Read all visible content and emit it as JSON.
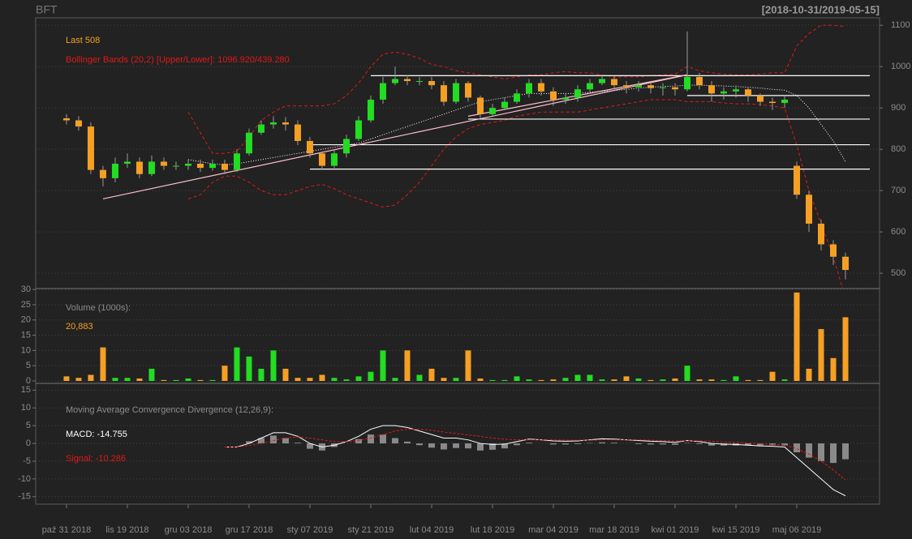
{
  "chart_data": [
    {
      "type": "candlestick",
      "title": "BFT",
      "date_range": "[2018-10-31/2019-05-15]",
      "last_label": "Last 508",
      "bands_label": "Bollinger Bands (20,2) [Upper/Lower]: 1096.920/439.280",
      "xlim": [
        -2.53,
        66.8
      ],
      "ylim": [
        463,
        1118
      ],
      "yticks": [
        500,
        600,
        700,
        800,
        900,
        1000,
        1100
      ],
      "grid": true,
      "up_color": "#22dd22",
      "down_color": "#f5a024",
      "band_color": "#e01818",
      "middle_color": "#ffffff",
      "open": [
        875,
        870,
        855,
        750,
        730,
        765,
        770,
        740,
        770,
        760,
        760,
        765,
        755,
        765,
        750,
        790,
        840,
        860,
        865,
        860,
        820,
        790,
        760,
        790,
        825,
        870,
        920,
        960,
        970,
        965,
        965,
        955,
        915,
        960,
        925,
        885,
        900,
        915,
        935,
        960,
        940,
        920,
        925,
        945,
        960,
        970,
        955,
        950,
        955,
        948,
        950,
        945,
        975,
        955,
        935,
        940,
        945,
        930,
        915,
        912,
        760,
        690,
        620,
        570,
        540
      ],
      "high": [
        885,
        880,
        865,
        760,
        780,
        790,
        780,
        785,
        780,
        770,
        775,
        775,
        775,
        775,
        800,
        850,
        870,
        880,
        878,
        870,
        830,
        795,
        800,
        835,
        880,
        930,
        975,
        1000,
        980,
        975,
        975,
        965,
        970,
        965,
        930,
        910,
        925,
        945,
        970,
        970,
        950,
        935,
        955,
        970,
        980,
        975,
        965,
        965,
        962,
        960,
        960,
        1085,
        985,
        965,
        950,
        955,
        950,
        935,
        925,
        930,
        770,
        700,
        630,
        580,
        550
      ],
      "low": [
        860,
        845,
        740,
        710,
        720,
        755,
        730,
        735,
        750,
        750,
        750,
        745,
        748,
        740,
        745,
        785,
        835,
        850,
        845,
        810,
        780,
        750,
        755,
        780,
        820,
        865,
        910,
        955,
        955,
        955,
        945,
        905,
        910,
        915,
        875,
        880,
        895,
        910,
        925,
        930,
        905,
        910,
        915,
        940,
        955,
        945,
        935,
        940,
        935,
        930,
        930,
        940,
        945,
        915,
        920,
        925,
        915,
        905,
        895,
        900,
        680,
        600,
        555,
        520,
        485
      ],
      "close": [
        870,
        855,
        750,
        730,
        765,
        770,
        740,
        770,
        760,
        760,
        765,
        755,
        765,
        750,
        790,
        840,
        860,
        865,
        860,
        820,
        790,
        760,
        790,
        825,
        870,
        920,
        960,
        970,
        965,
        965,
        955,
        915,
        960,
        925,
        885,
        900,
        915,
        935,
        960,
        940,
        920,
        925,
        945,
        960,
        970,
        955,
        950,
        955,
        948,
        950,
        945,
        975,
        955,
        935,
        940,
        945,
        930,
        915,
        912,
        920,
        690,
        620,
        570,
        540,
        508
      ],
      "upper": [
        null,
        null,
        null,
        null,
        null,
        null,
        null,
        null,
        null,
        null,
        890,
        840,
        790,
        790,
        795,
        830,
        870,
        890,
        905,
        905,
        905,
        905,
        910,
        930,
        960,
        1000,
        1030,
        1035,
        1030,
        1020,
        1005,
        1000,
        990,
        985,
        980,
        975,
        970,
        975,
        980,
        980,
        985,
        988,
        985,
        985,
        980,
        975,
        975,
        975,
        978,
        980,
        982,
        1000,
        990,
        985,
        982,
        980,
        980,
        982,
        985,
        985,
        1050,
        1080,
        1100,
        1100,
        1096.92
      ],
      "middle": [
        null,
        null,
        null,
        null,
        null,
        null,
        null,
        null,
        null,
        null,
        775,
        770,
        765,
        762,
        765,
        770,
        775,
        780,
        785,
        790,
        795,
        800,
        805,
        810,
        815,
        825,
        835,
        845,
        855,
        865,
        875,
        885,
        895,
        905,
        915,
        920,
        925,
        930,
        935,
        935,
        935,
        935,
        935,
        938,
        940,
        942,
        945,
        948,
        950,
        952,
        953,
        955,
        955,
        954,
        953,
        952,
        950,
        948,
        945,
        943,
        930,
        900,
        860,
        820,
        770
      ],
      "lower": [
        null,
        null,
        null,
        null,
        null,
        null,
        null,
        null,
        null,
        null,
        680,
        690,
        720,
        735,
        735,
        720,
        700,
        690,
        690,
        700,
        710,
        715,
        705,
        690,
        680,
        670,
        660,
        665,
        690,
        720,
        760,
        800,
        830,
        850,
        860,
        865,
        870,
        880,
        885,
        890,
        890,
        890,
        890,
        895,
        900,
        905,
        910,
        915,
        920,
        920,
        920,
        915,
        915,
        915,
        912,
        910,
        910,
        908,
        905,
        900,
        810,
        700,
        620,
        540,
        439.28
      ],
      "lines": [
        {
          "x": [
            25,
            66
          ],
          "y": [
            978,
            978
          ],
          "color": "#ffffff"
        },
        {
          "x": [
            51,
            66
          ],
          "y": [
            930,
            930
          ],
          "color": "#ffffff"
        },
        {
          "x": [
            33,
            66
          ],
          "y": [
            873,
            873
          ],
          "color": "#ffffff"
        },
        {
          "x": [
            20,
            66
          ],
          "y": [
            811,
            811
          ],
          "color": "#ffffff"
        },
        {
          "x": [
            20,
            66
          ],
          "y": [
            752,
            752
          ],
          "color": "#ffffff"
        },
        {
          "x": [
            3,
            51
          ],
          "y": [
            680,
            980
          ],
          "color": "#ffc0cb"
        },
        {
          "x": [
            33,
            51
          ],
          "y": [
            880,
            980
          ],
          "color": "#ffc0cb"
        }
      ]
    },
    {
      "type": "bar",
      "title": "Volume (1000s):",
      "xlim": [
        -2.53,
        66.8
      ],
      "ylim": [
        -0.8,
        30.3
      ],
      "yticks": [
        0,
        5,
        10,
        15,
        20,
        25,
        30
      ],
      "grid": true,
      "values": [
        1.5,
        1,
        2,
        11,
        1,
        1,
        0.8,
        4,
        0.3,
        0.3,
        0.8,
        0.3,
        0.3,
        5,
        11,
        8,
        4,
        10,
        4,
        1,
        1,
        2,
        1,
        0.5,
        1.5,
        3,
        10,
        1,
        10,
        2,
        4,
        1,
        1,
        10,
        0.8,
        0.3,
        0.3,
        1.5,
        0.5,
        0.3,
        0.5,
        1,
        2,
        2,
        0.5,
        0.5,
        1.5,
        0.8,
        0.3,
        0.5,
        0.8,
        5,
        0.5,
        0.5,
        0.3,
        1.5,
        0.3,
        0.3,
        3,
        0.5,
        29,
        4,
        17,
        7.5,
        20.883
      ],
      "value_labels": [
        null,
        null,
        null,
        null,
        null,
        null,
        null,
        null,
        null,
        null,
        null,
        null,
        null,
        null,
        null,
        null,
        null,
        null,
        null,
        null,
        null,
        null,
        null,
        null,
        null,
        null,
        null,
        null,
        null,
        null,
        null,
        null,
        null,
        null,
        null,
        null,
        null,
        null,
        null,
        null,
        null,
        null,
        null,
        null,
        null,
        null,
        null,
        null,
        null,
        null,
        null,
        null,
        null,
        null,
        null,
        null,
        null,
        null,
        null,
        null,
        null,
        null,
        null,
        null,
        "20,883"
      ],
      "label_color": "#f5a024"
    },
    {
      "type": "line",
      "title": "Moving Average Convergence Divergence (12,26,9):",
      "xlim": [
        -2.53,
        66.8
      ],
      "ylim": [
        -17.1,
        16.9
      ],
      "yticks": [
        -15,
        -10,
        -5,
        0,
        5,
        10,
        15
      ],
      "grid": true,
      "categories": [
        "paź 31 2018",
        null,
        null,
        null,
        null,
        "lis 19 2018",
        null,
        null,
        null,
        null,
        "gru 03 2018",
        null,
        null,
        null,
        null,
        "gru 17 2018",
        null,
        null,
        null,
        null,
        "sty 07 2019",
        null,
        null,
        null,
        null,
        "sty 21 2019",
        null,
        null,
        null,
        null,
        "lut 04 2019",
        null,
        null,
        null,
        null,
        "lut 18 2019",
        null,
        null,
        null,
        null,
        "mar 04 2019",
        null,
        null,
        null,
        null,
        "mar 18 2019",
        null,
        null,
        null,
        null,
        "kwi 01 2019",
        null,
        null,
        null,
        null,
        "kwi 15 2019",
        null,
        null,
        null,
        null,
        "maj 06 2019",
        null,
        null,
        null,
        null
      ],
      "series": [
        {
          "name": "MACD: -14.755",
          "color": "#ffffff",
          "values": [
            null,
            null,
            null,
            null,
            null,
            null,
            null,
            null,
            null,
            null,
            null,
            null,
            null,
            -1,
            -1,
            0,
            1.5,
            3,
            3,
            2,
            0,
            -1,
            -0.5,
            0.5,
            2,
            4,
            5,
            5,
            4.5,
            3.5,
            2.5,
            1.5,
            1.5,
            1,
            0,
            -0.3,
            -0.2,
            0.5,
            1.2,
            1,
            0.7,
            0.6,
            0.7,
            1,
            1.3,
            1.2,
            1,
            0.8,
            0.6,
            0.5,
            0.3,
            0.8,
            0.5,
            0,
            -0.2,
            -0.3,
            -0.5,
            -0.7,
            -0.8,
            -1,
            -4,
            -7,
            -10,
            -13,
            -14.755
          ]
        },
        {
          "name": "Signal: -10.286",
          "color": "#e01818",
          "values": [
            null,
            null,
            null,
            null,
            null,
            null,
            null,
            null,
            null,
            null,
            null,
            null,
            null,
            -1,
            -1,
            -0.6,
            0,
            0.8,
            1.5,
            1.8,
            1.5,
            1,
            0.5,
            0.5,
            0.8,
            1.5,
            2.5,
            3.5,
            4,
            4,
            3.7,
            3.2,
            2.8,
            2.4,
            2,
            1.5,
            1.2,
            1,
            1,
            1,
            1,
            0.9,
            0.9,
            0.9,
            1,
            1,
            1,
            1,
            0.9,
            0.8,
            0.7,
            0.7,
            0.7,
            0.6,
            0.4,
            0.3,
            0.1,
            -0.1,
            -0.3,
            -0.4,
            -1.5,
            -3,
            -5,
            -7.5,
            -10.286
          ]
        }
      ],
      "histogram": [
        null,
        null,
        null,
        null,
        null,
        null,
        null,
        null,
        null,
        null,
        null,
        null,
        null,
        0,
        0,
        0.6,
        1.5,
        2.2,
        1.5,
        0.2,
        -1.5,
        -2,
        -1,
        0,
        1.2,
        2.5,
        2.5,
        1.5,
        0.5,
        -0.5,
        -1.2,
        -1.7,
        -1.3,
        -1.4,
        -2,
        -1.8,
        -1.4,
        -0.5,
        0.2,
        0,
        -0.3,
        -0.3,
        -0.2,
        0.1,
        0.3,
        0.2,
        0,
        -0.2,
        -0.3,
        -0.3,
        -0.4,
        0.1,
        -0.2,
        -0.6,
        -0.6,
        -0.6,
        -0.6,
        -0.6,
        -0.5,
        -0.6,
        -2.5,
        -4,
        -5,
        -5.5,
        -4.469
      ],
      "histogram_color": "#8a8a8a"
    }
  ]
}
